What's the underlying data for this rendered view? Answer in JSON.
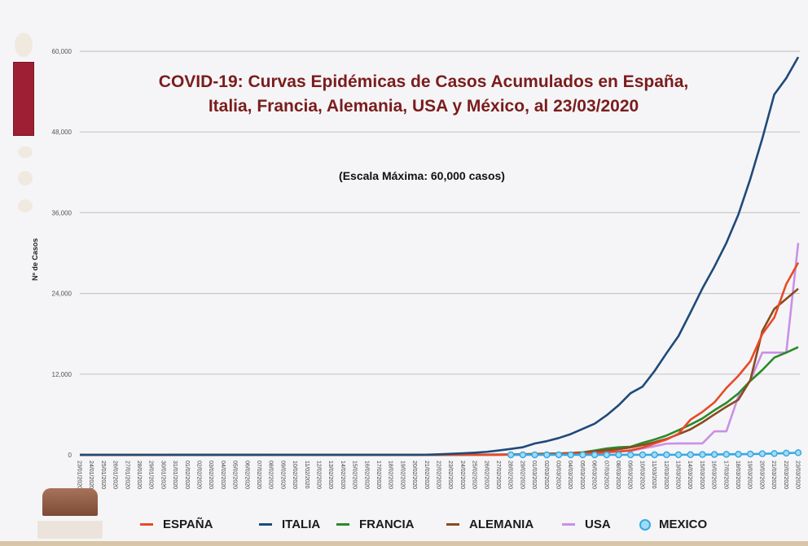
{
  "chart_data": {
    "type": "line",
    "title_lines": [
      "COVID-19: Curvas Epidémicas de Casos Acumulados en España,",
      "Italia, Francia, Alemania, USA y México, al 23/03/2020"
    ],
    "subtitle": "(Escala Máxima: 60,000 casos)",
    "ylabel": "Nº de Casos",
    "xlabel": "",
    "ylim": [
      0,
      60000
    ],
    "yticks": [
      0,
      12000,
      24000,
      36000,
      48000,
      60000
    ],
    "ytick_labels": [
      "0",
      "12,000",
      "24,000",
      "36,000",
      "48,000",
      "60,000"
    ],
    "grid": "horizontal",
    "legend_position": "bottom",
    "x": [
      "23/01/2020",
      "24/01/2020",
      "25/01/2020",
      "26/01/2020",
      "27/01/2020",
      "28/01/2020",
      "29/01/2020",
      "30/01/2020",
      "31/01/2020",
      "01/02/2020",
      "02/02/2020",
      "03/02/2020",
      "04/02/2020",
      "05/02/2020",
      "06/02/2020",
      "07/02/2020",
      "08/02/2020",
      "09/02/2020",
      "10/02/2020",
      "11/02/2020",
      "12/02/2020",
      "13/02/2020",
      "14/02/2020",
      "15/02/2020",
      "16/02/2020",
      "17/02/2020",
      "18/02/2020",
      "19/02/2020",
      "20/02/2020",
      "21/02/2020",
      "22/02/2020",
      "23/02/2020",
      "24/02/2020",
      "25/02/2020",
      "26/02/2020",
      "27/02/2020",
      "28/02/2020",
      "29/02/2020",
      "01/03/2020",
      "02/03/2020",
      "03/03/2020",
      "04/03/2020",
      "05/03/2020",
      "06/03/2020",
      "07/03/2020",
      "08/03/2020",
      "09/03/2020",
      "10/03/2020",
      "11/03/2020",
      "12/03/2020",
      "13/03/2020",
      "14/03/2020",
      "15/03/2020",
      "16/03/2020",
      "17/03/2020",
      "18/03/2020",
      "19/03/2020",
      "20/03/2020",
      "21/03/2020",
      "22/03/2020",
      "23/03/2020"
    ],
    "series": [
      {
        "name": "ESPAÑA",
        "color": "#e84a27",
        "marker": false,
        "values": [
          0,
          0,
          0,
          0,
          0,
          0,
          0,
          0,
          0,
          1,
          1,
          1,
          1,
          1,
          1,
          1,
          1,
          2,
          2,
          2,
          2,
          2,
          2,
          2,
          2,
          2,
          2,
          2,
          2,
          2,
          2,
          2,
          2,
          2,
          6,
          13,
          15,
          32,
          45,
          84,
          120,
          165,
          222,
          259,
          400,
          500,
          673,
          1073,
          1695,
          2277,
          3146,
          5232,
          6391,
          7798,
          9942,
          11748,
          13910,
          17963,
          20410,
          25374,
          28572
        ]
      },
      {
        "name": "ITALIA",
        "color": "#1f4a7a",
        "marker": false,
        "values": [
          0,
          0,
          0,
          0,
          0,
          0,
          0,
          0,
          2,
          3,
          3,
          3,
          3,
          3,
          3,
          3,
          3,
          3,
          3,
          3,
          3,
          3,
          3,
          3,
          3,
          3,
          3,
          3,
          3,
          20,
          79,
          155,
          229,
          322,
          453,
          655,
          888,
          1128,
          1694,
          2036,
          2502,
          3089,
          3858,
          4636,
          5883,
          7375,
          9172,
          10149,
          12462,
          15113,
          17660,
          21157,
          24747,
          27980,
          31506,
          35713,
          41035,
          47021,
          53578,
          56000,
          59138
        ]
      },
      {
        "name": "FRANCIA",
        "color": "#2a8a2a",
        "marker": false,
        "values": [
          0,
          2,
          3,
          3,
          3,
          4,
          5,
          5,
          5,
          6,
          6,
          6,
          6,
          6,
          6,
          6,
          11,
          11,
          11,
          11,
          11,
          11,
          11,
          12,
          12,
          12,
          12,
          12,
          12,
          12,
          12,
          12,
          12,
          14,
          18,
          38,
          57,
          100,
          130,
          191,
          204,
          285,
          377,
          653,
          949,
          1126,
          1209,
          1784,
          2281,
          2876,
          3661,
          4499,
          5423,
          6633,
          7730,
          9134,
          10995,
          12612,
          14459,
          15200,
          16018
        ]
      },
      {
        "name": "ALEMANIA",
        "color": "#8a4a1e",
        "marker": false,
        "values": [
          0,
          0,
          0,
          0,
          0,
          4,
          4,
          4,
          5,
          8,
          10,
          12,
          12,
          12,
          12,
          13,
          14,
          14,
          14,
          14,
          16,
          16,
          16,
          16,
          16,
          16,
          16,
          16,
          16,
          16,
          16,
          16,
          16,
          18,
          21,
          26,
          53,
          66,
          117,
          150,
          188,
          240,
          349,
          534,
          684,
          847,
          1112,
          1460,
          1884,
          2369,
          3062,
          3795,
          4838,
          6012,
          7156,
          8198,
          11100,
          18400,
          21700,
          23200,
          24700
        ]
      },
      {
        "name": "USA",
        "color": "#c990e6",
        "marker": false,
        "values": [
          1,
          2,
          2,
          5,
          5,
          5,
          5,
          5,
          6,
          8,
          8,
          11,
          11,
          11,
          12,
          12,
          12,
          12,
          12,
          12,
          13,
          13,
          13,
          13,
          13,
          13,
          13,
          13,
          15,
          15,
          15,
          15,
          51,
          51,
          57,
          58,
          60,
          68,
          74,
          98,
          118,
          149,
          217,
          262,
          402,
          518,
          583,
          959,
          1281,
          1663,
          1700,
          1700,
          1700,
          3500,
          3500,
          8700,
          11100,
          15200,
          15200,
          15200,
          31500
        ]
      },
      {
        "name": "MEXICO",
        "color": "#3aa8e0",
        "marker": true,
        "values": [
          null,
          null,
          null,
          null,
          null,
          null,
          null,
          null,
          null,
          null,
          null,
          null,
          null,
          null,
          null,
          null,
          null,
          null,
          null,
          null,
          null,
          null,
          null,
          null,
          null,
          null,
          null,
          null,
          null,
          null,
          null,
          null,
          null,
          null,
          null,
          null,
          2,
          4,
          5,
          5,
          5,
          5,
          5,
          6,
          7,
          7,
          7,
          7,
          8,
          12,
          15,
          26,
          41,
          53,
          82,
          93,
          118,
          164,
          203,
          251,
          316
        ]
      }
    ]
  }
}
